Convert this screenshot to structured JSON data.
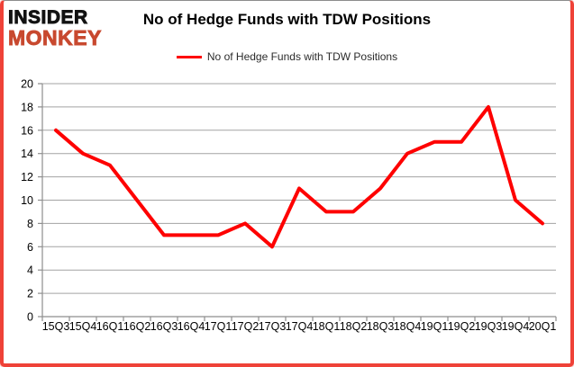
{
  "logo": {
    "line1": "INSIDER",
    "line2": "MONKEY"
  },
  "header": {
    "title": "No of Hedge Funds with TDW Positions"
  },
  "legend": {
    "label": "No of Hedge Funds with TDW Positions"
  },
  "colors": {
    "line": "#fe0000",
    "logo_accent": "#c8492f",
    "frame": "#ef4238",
    "grid": "#a3a3a3",
    "axis": "#8e8e8e",
    "text": "#000000"
  },
  "chart_data": {
    "type": "line",
    "title": "No of Hedge Funds with TDW Positions",
    "categories": [
      "15Q3",
      "15Q4",
      "16Q1",
      "16Q2",
      "16Q3",
      "16Q4",
      "17Q1",
      "17Q2",
      "17Q3",
      "17Q4",
      "18Q1",
      "18Q2",
      "18Q3",
      "18Q4",
      "19Q1",
      "19Q2",
      "19Q3",
      "19Q4",
      "20Q1"
    ],
    "series": [
      {
        "name": "No of Hedge Funds with TDW Positions",
        "color": "#fe0000",
        "values": [
          16,
          14,
          13,
          10,
          7,
          7,
          7,
          8,
          6,
          11,
          9,
          9,
          11,
          14,
          15,
          15,
          18,
          10,
          8
        ]
      }
    ],
    "xlabel": "",
    "ylabel": "",
    "ylim": [
      0,
      20
    ],
    "y_ticks": [
      0,
      2,
      4,
      6,
      8,
      10,
      12,
      14,
      16,
      18,
      20
    ],
    "grid": "horizontal",
    "legend_position": "top-center"
  }
}
